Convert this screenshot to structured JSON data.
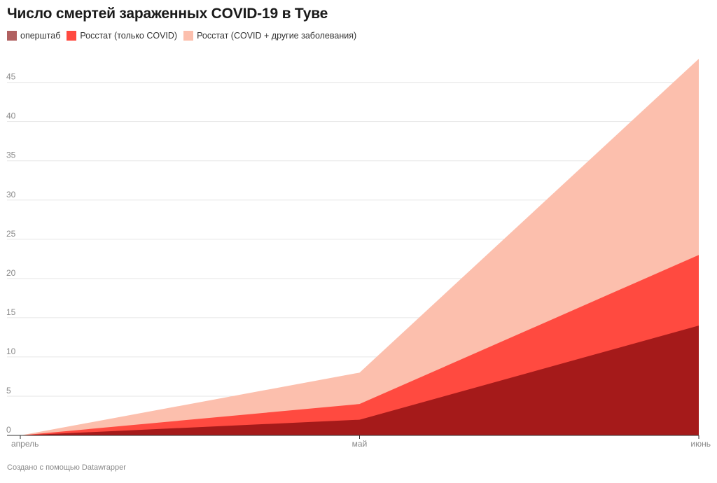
{
  "title": "Число смертей зараженных COVID-19 в Туве",
  "footer": "Создано с помощью Datawrapper",
  "chart_data": {
    "type": "area",
    "stacked": false,
    "categories": [
      "апрель",
      "май",
      "июнь"
    ],
    "ylim": [
      0,
      48
    ],
    "yticks": [
      0,
      5,
      10,
      15,
      20,
      25,
      30,
      35,
      40,
      45
    ],
    "grid": true,
    "legend_position": "top-left",
    "series": [
      {
        "name": "Росстат (COVID + другие заболевания)",
        "color": "#fcbfad",
        "values": [
          0,
          8,
          48
        ]
      },
      {
        "name": "Росстат (только COVID)",
        "color": "#ff4a40",
        "values": [
          0,
          4,
          23
        ]
      },
      {
        "name": "оперштаб",
        "color": "#a51a1a",
        "values": [
          0,
          2,
          14
        ]
      }
    ],
    "legend_order": [
      2,
      1,
      0
    ],
    "legend_colors": [
      "#b06060",
      "#ff4a40",
      "#fcbfad"
    ]
  }
}
